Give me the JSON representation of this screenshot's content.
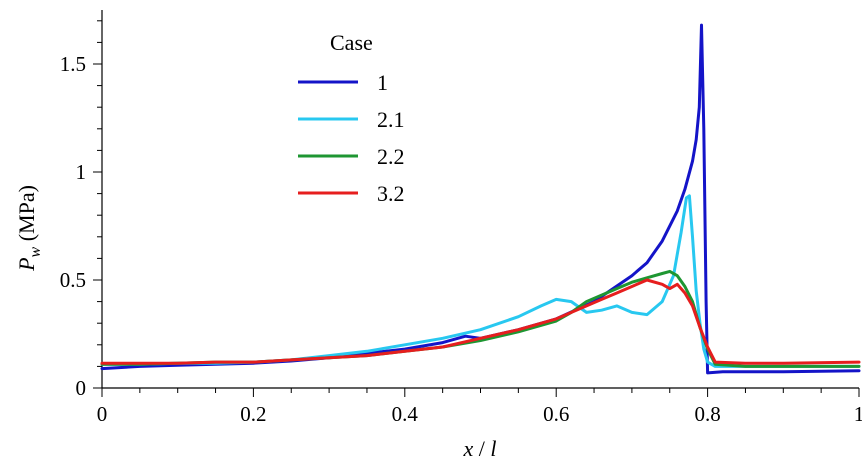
{
  "chart_data": {
    "type": "line",
    "xlabel_parts": {
      "var": "x",
      "sep": " / ",
      "var2": "l"
    },
    "ylabel_parts": {
      "var": "P",
      "sub": "w",
      "unit": " (MPa)"
    },
    "xlim": [
      0,
      1
    ],
    "ylim": [
      0,
      1.75
    ],
    "x_ticks": [
      0,
      0.2,
      0.4,
      0.6,
      0.8,
      1
    ],
    "x_tick_labels": [
      "0",
      "0.2",
      "0.4",
      "0.6",
      "0.8",
      "1"
    ],
    "x_minor_step": 0.05,
    "y_ticks": [
      0,
      0.5,
      1,
      1.5
    ],
    "y_tick_labels": [
      "0",
      "0.5",
      "1",
      "1.5"
    ],
    "y_minor_step": 0.1,
    "grid": false,
    "legend": {
      "title": "Case",
      "placement": "top-left"
    },
    "series": [
      {
        "name": "1",
        "color": "#1414c8",
        "x": [
          0,
          0.05,
          0.1,
          0.15,
          0.2,
          0.25,
          0.3,
          0.35,
          0.4,
          0.45,
          0.48,
          0.5,
          0.55,
          0.6,
          0.65,
          0.7,
          0.72,
          0.74,
          0.76,
          0.77,
          0.78,
          0.785,
          0.789,
          0.792,
          0.795,
          0.798,
          0.8,
          0.82,
          0.9,
          1.0
        ],
        "y": [
          0.09,
          0.1,
          0.105,
          0.11,
          0.115,
          0.125,
          0.14,
          0.16,
          0.18,
          0.21,
          0.24,
          0.23,
          0.27,
          0.32,
          0.4,
          0.52,
          0.58,
          0.68,
          0.82,
          0.92,
          1.05,
          1.15,
          1.3,
          1.68,
          1.2,
          0.4,
          0.07,
          0.075,
          0.075,
          0.08
        ]
      },
      {
        "name": "2.1",
        "color": "#28c8f0",
        "x": [
          0,
          0.05,
          0.1,
          0.15,
          0.2,
          0.25,
          0.3,
          0.35,
          0.4,
          0.45,
          0.5,
          0.55,
          0.58,
          0.6,
          0.62,
          0.64,
          0.66,
          0.68,
          0.7,
          0.72,
          0.74,
          0.755,
          0.765,
          0.772,
          0.776,
          0.78,
          0.785,
          0.79,
          0.795,
          0.8,
          0.81,
          0.85,
          0.9,
          1.0
        ],
        "y": [
          0.11,
          0.11,
          0.115,
          0.115,
          0.12,
          0.13,
          0.15,
          0.17,
          0.2,
          0.23,
          0.27,
          0.33,
          0.38,
          0.41,
          0.4,
          0.35,
          0.36,
          0.38,
          0.35,
          0.34,
          0.4,
          0.52,
          0.72,
          0.88,
          0.89,
          0.7,
          0.45,
          0.3,
          0.18,
          0.12,
          0.1,
          0.1,
          0.1,
          0.1
        ]
      },
      {
        "name": "2.2",
        "color": "#1e9632",
        "x": [
          0,
          0.05,
          0.1,
          0.15,
          0.2,
          0.25,
          0.3,
          0.35,
          0.4,
          0.45,
          0.5,
          0.55,
          0.6,
          0.62,
          0.64,
          0.66,
          0.68,
          0.7,
          0.72,
          0.74,
          0.75,
          0.76,
          0.77,
          0.78,
          0.79,
          0.8,
          0.81,
          0.85,
          0.9,
          1.0
        ],
        "y": [
          0.11,
          0.11,
          0.115,
          0.12,
          0.12,
          0.13,
          0.14,
          0.15,
          0.17,
          0.19,
          0.22,
          0.26,
          0.31,
          0.35,
          0.4,
          0.43,
          0.46,
          0.49,
          0.51,
          0.53,
          0.54,
          0.52,
          0.47,
          0.4,
          0.28,
          0.18,
          0.11,
          0.1,
          0.1,
          0.1
        ]
      },
      {
        "name": "3.2",
        "color": "#e61e1e",
        "x": [
          0,
          0.05,
          0.1,
          0.15,
          0.2,
          0.25,
          0.3,
          0.35,
          0.4,
          0.45,
          0.5,
          0.55,
          0.6,
          0.62,
          0.64,
          0.66,
          0.68,
          0.7,
          0.72,
          0.74,
          0.75,
          0.76,
          0.77,
          0.78,
          0.79,
          0.8,
          0.81,
          0.85,
          0.9,
          1.0
        ],
        "y": [
          0.115,
          0.115,
          0.115,
          0.12,
          0.12,
          0.13,
          0.14,
          0.15,
          0.17,
          0.19,
          0.23,
          0.27,
          0.32,
          0.35,
          0.38,
          0.41,
          0.44,
          0.47,
          0.5,
          0.48,
          0.46,
          0.48,
          0.44,
          0.38,
          0.28,
          0.19,
          0.12,
          0.115,
          0.115,
          0.12
        ]
      }
    ]
  }
}
